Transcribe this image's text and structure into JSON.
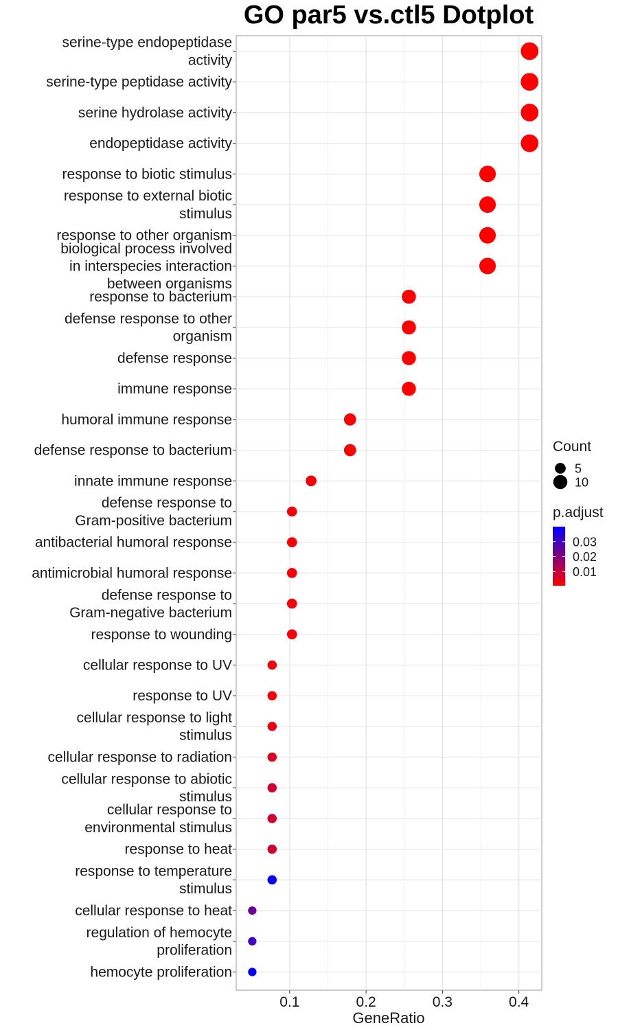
{
  "chart_data": {
    "type": "scatter",
    "title": "GO par5 vs.ctl5 Dotplot",
    "xlabel": "GeneRatio",
    "ylabel": "",
    "xlim": [
      0.03,
      0.43
    ],
    "xticks": [
      0.1,
      0.2,
      0.3,
      0.4
    ],
    "xtick_labels": [
      "0.1",
      "0.2",
      "0.3",
      "0.4"
    ],
    "grid": true,
    "categories": [
      [
        "serine-type endopeptidase",
        "activity"
      ],
      [
        "serine-type peptidase activity"
      ],
      [
        "serine hydrolase activity"
      ],
      [
        "endopeptidase activity"
      ],
      [
        "response to biotic stimulus"
      ],
      [
        "response to external biotic",
        "stimulus"
      ],
      [
        "response to other organism"
      ],
      [
        "biological process involved",
        "in interspecies interaction",
        "between organisms"
      ],
      [
        "response to bacterium"
      ],
      [
        "defense response to other",
        "organism"
      ],
      [
        "defense response"
      ],
      [
        "immune response"
      ],
      [
        "humoral immune response"
      ],
      [
        "defense response to bacterium"
      ],
      [
        "innate immune response"
      ],
      [
        "defense response to",
        "Gram-positive bacterium"
      ],
      [
        "antibacterial humoral response"
      ],
      [
        "antimicrobial humoral response"
      ],
      [
        "defense response to",
        "Gram-negative bacterium"
      ],
      [
        "response to wounding"
      ],
      [
        "cellular response to UV"
      ],
      [
        "response to UV"
      ],
      [
        "cellular response to light",
        "stimulus"
      ],
      [
        "cellular response to radiation"
      ],
      [
        "cellular response to abiotic",
        "stimulus"
      ],
      [
        "cellular response to",
        "environmental stimulus"
      ],
      [
        "response to heat"
      ],
      [
        "response to temperature",
        "stimulus"
      ],
      [
        "cellular response to heat"
      ],
      [
        "regulation of hemocyte",
        "proliferation"
      ],
      [
        "hemocyte proliferation"
      ]
    ],
    "points": [
      {
        "x": 0.414,
        "count": 16,
        "p_adjust": 0.0005
      },
      {
        "x": 0.414,
        "count": 16,
        "p_adjust": 0.0005
      },
      {
        "x": 0.414,
        "count": 16,
        "p_adjust": 0.0005
      },
      {
        "x": 0.414,
        "count": 16,
        "p_adjust": 0.0005
      },
      {
        "x": 0.359,
        "count": 14,
        "p_adjust": 0.0005
      },
      {
        "x": 0.359,
        "count": 14,
        "p_adjust": 0.0005
      },
      {
        "x": 0.359,
        "count": 14,
        "p_adjust": 0.0005
      },
      {
        "x": 0.359,
        "count": 14,
        "p_adjust": 0.0005
      },
      {
        "x": 0.256,
        "count": 10,
        "p_adjust": 0.0005
      },
      {
        "x": 0.256,
        "count": 10,
        "p_adjust": 0.0005
      },
      {
        "x": 0.256,
        "count": 10,
        "p_adjust": 0.0005
      },
      {
        "x": 0.256,
        "count": 10,
        "p_adjust": 0.0005
      },
      {
        "x": 0.179,
        "count": 7,
        "p_adjust": 0.001
      },
      {
        "x": 0.179,
        "count": 7,
        "p_adjust": 0.001
      },
      {
        "x": 0.128,
        "count": 5,
        "p_adjust": 0.002
      },
      {
        "x": 0.103,
        "count": 4,
        "p_adjust": 0.002
      },
      {
        "x": 0.103,
        "count": 4,
        "p_adjust": 0.002
      },
      {
        "x": 0.103,
        "count": 4,
        "p_adjust": 0.002
      },
      {
        "x": 0.103,
        "count": 4,
        "p_adjust": 0.002
      },
      {
        "x": 0.103,
        "count": 4,
        "p_adjust": 0.002
      },
      {
        "x": 0.077,
        "count": 3,
        "p_adjust": 0.002
      },
      {
        "x": 0.077,
        "count": 3,
        "p_adjust": 0.002
      },
      {
        "x": 0.077,
        "count": 3,
        "p_adjust": 0.004
      },
      {
        "x": 0.077,
        "count": 3,
        "p_adjust": 0.006
      },
      {
        "x": 0.077,
        "count": 3,
        "p_adjust": 0.008
      },
      {
        "x": 0.077,
        "count": 3,
        "p_adjust": 0.008
      },
      {
        "x": 0.077,
        "count": 3,
        "p_adjust": 0.008
      },
      {
        "x": 0.077,
        "count": 3,
        "p_adjust": 0.038
      },
      {
        "x": 0.051,
        "count": 2,
        "p_adjust": 0.024
      },
      {
        "x": 0.051,
        "count": 2,
        "p_adjust": 0.03
      },
      {
        "x": 0.051,
        "count": 2,
        "p_adjust": 0.04
      }
    ],
    "legend": {
      "placement": "right",
      "size_title": "Count",
      "size_entries": [
        {
          "label": "5",
          "value": 5
        },
        {
          "label": "10",
          "value": 10
        }
      ],
      "color_title": "p.adjust",
      "color_range": [
        0.0005,
        0.04
      ],
      "color_ticks": [
        {
          "label": "0.03",
          "value": 0.03
        },
        {
          "label": "0.02",
          "value": 0.02
        },
        {
          "label": "0.01",
          "value": 0.01
        }
      ],
      "color_low": "#ff0000",
      "color_high": "#0000ff"
    }
  }
}
